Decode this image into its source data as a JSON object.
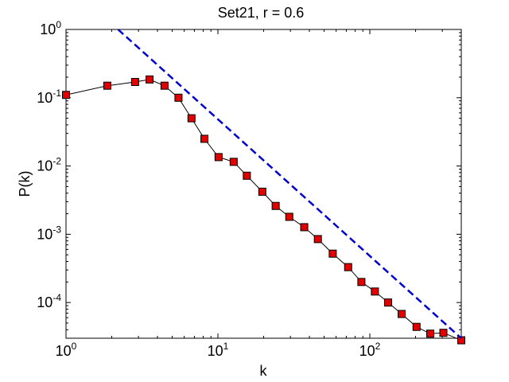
{
  "chart_data": {
    "type": "line",
    "title": "Set21, r = 0.6",
    "xlabel": "k",
    "ylabel": "P(k)",
    "xscale": "log",
    "yscale": "log",
    "xlim": [
      1,
      400
    ],
    "ylim": [
      3e-05,
      1
    ],
    "grid": false,
    "x_ticks": [
      {
        "value": 1,
        "base": "10",
        "exp": "0"
      },
      {
        "value": 10,
        "base": "10",
        "exp": "1"
      },
      {
        "value": 100,
        "base": "10",
        "exp": "2"
      }
    ],
    "y_ticks": [
      {
        "value": 1,
        "base": "10",
        "exp": "0"
      },
      {
        "value": 0.1,
        "base": "10",
        "exp": "-1"
      },
      {
        "value": 0.01,
        "base": "10",
        "exp": "-2"
      },
      {
        "value": 0.001,
        "base": "10",
        "exp": "-3"
      },
      {
        "value": 0.0001,
        "base": "10",
        "exp": "-4"
      }
    ],
    "series": [
      {
        "style": "solid-line-square-markers",
        "line_color": "#000000",
        "marker_color": "#e00000",
        "x": [
          1,
          1.87,
          2.85,
          3.55,
          4.45,
          5.5,
          6.7,
          8.15,
          10.1,
          12.7,
          15.5,
          19.6,
          24,
          29.5,
          37,
          45.5,
          57,
          72,
          88,
          108,
          132,
          162,
          203,
          250,
          305,
          400
        ],
        "y": [
          0.11,
          0.15,
          0.17,
          0.185,
          0.15,
          0.1,
          0.05,
          0.025,
          0.0135,
          0.0115,
          0.0072,
          0.0042,
          0.0026,
          0.0018,
          0.00127,
          0.00085,
          0.00052,
          0.00033,
          0.0002,
          0.000145,
          0.0001,
          6.8e-05,
          4.4e-05,
          3.5e-05,
          3.6e-05,
          2.8e-05
        ]
      },
      {
        "style": "dashed-line",
        "line_color": "#0000cc",
        "x": [
          2.2,
          400
        ],
        "y": [
          1,
          3e-05
        ]
      }
    ]
  }
}
